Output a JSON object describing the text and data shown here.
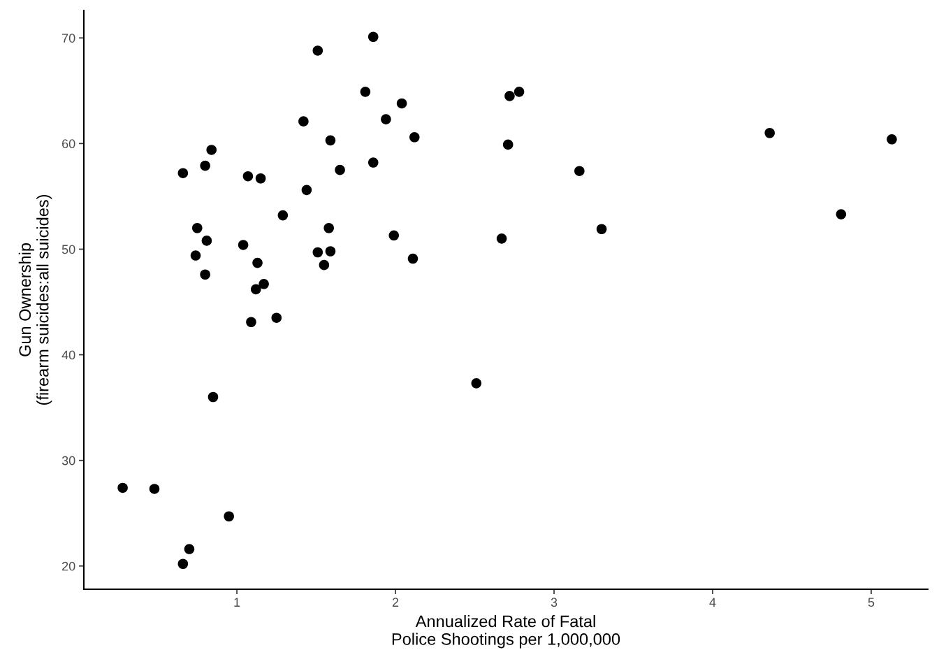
{
  "chart_data": {
    "type": "scatter",
    "xlabel": "Annualized Rate of Fatal\nPolice Shootings per 1,000,000",
    "ylabel": "Gun Ownership\n(firearm suicides:all suicides)",
    "x": [
      1.51,
      1.42,
      1.59,
      0.84,
      0.8,
      0.66,
      1.07,
      1.15,
      1.65,
      1.44,
      1.29,
      0.75,
      1.58,
      0.81,
      1.04,
      1.51,
      1.59,
      0.74,
      1.55,
      1.13,
      0.8,
      1.17,
      1.12,
      1.25,
      1.09,
      1.86,
      1.81,
      2.04,
      1.94,
      2.12,
      1.86,
      1.99,
      2.11,
      2.72,
      2.78,
      2.71,
      3.16,
      2.67,
      3.3,
      0.28,
      0.48,
      0.85,
      0.95,
      0.7,
      0.66,
      2.51,
      4.36,
      5.13,
      4.81
    ],
    "values": [
      68.8,
      62.1,
      60.3,
      59.4,
      57.9,
      57.2,
      56.9,
      56.7,
      57.5,
      55.6,
      53.2,
      52.0,
      52.0,
      50.8,
      50.4,
      49.7,
      49.8,
      49.4,
      48.5,
      48.7,
      47.6,
      46.7,
      46.2,
      43.5,
      43.1,
      70.1,
      64.9,
      63.8,
      62.3,
      60.6,
      58.2,
      51.3,
      49.1,
      64.5,
      64.9,
      59.9,
      57.4,
      51.0,
      51.9,
      27.4,
      27.3,
      36.0,
      24.7,
      21.6,
      20.2,
      37.3,
      61.0,
      60.4,
      53.3
    ],
    "color": "#000000",
    "marker": "circle",
    "xlim": [
      0.035,
      5.357
    ],
    "ylim": [
      17.8,
      72.6
    ],
    "xticks": [
      1,
      2,
      3,
      4,
      5
    ],
    "yticks": [
      20,
      30,
      40,
      50,
      60,
      70
    ],
    "grid": false,
    "legend": false
  }
}
